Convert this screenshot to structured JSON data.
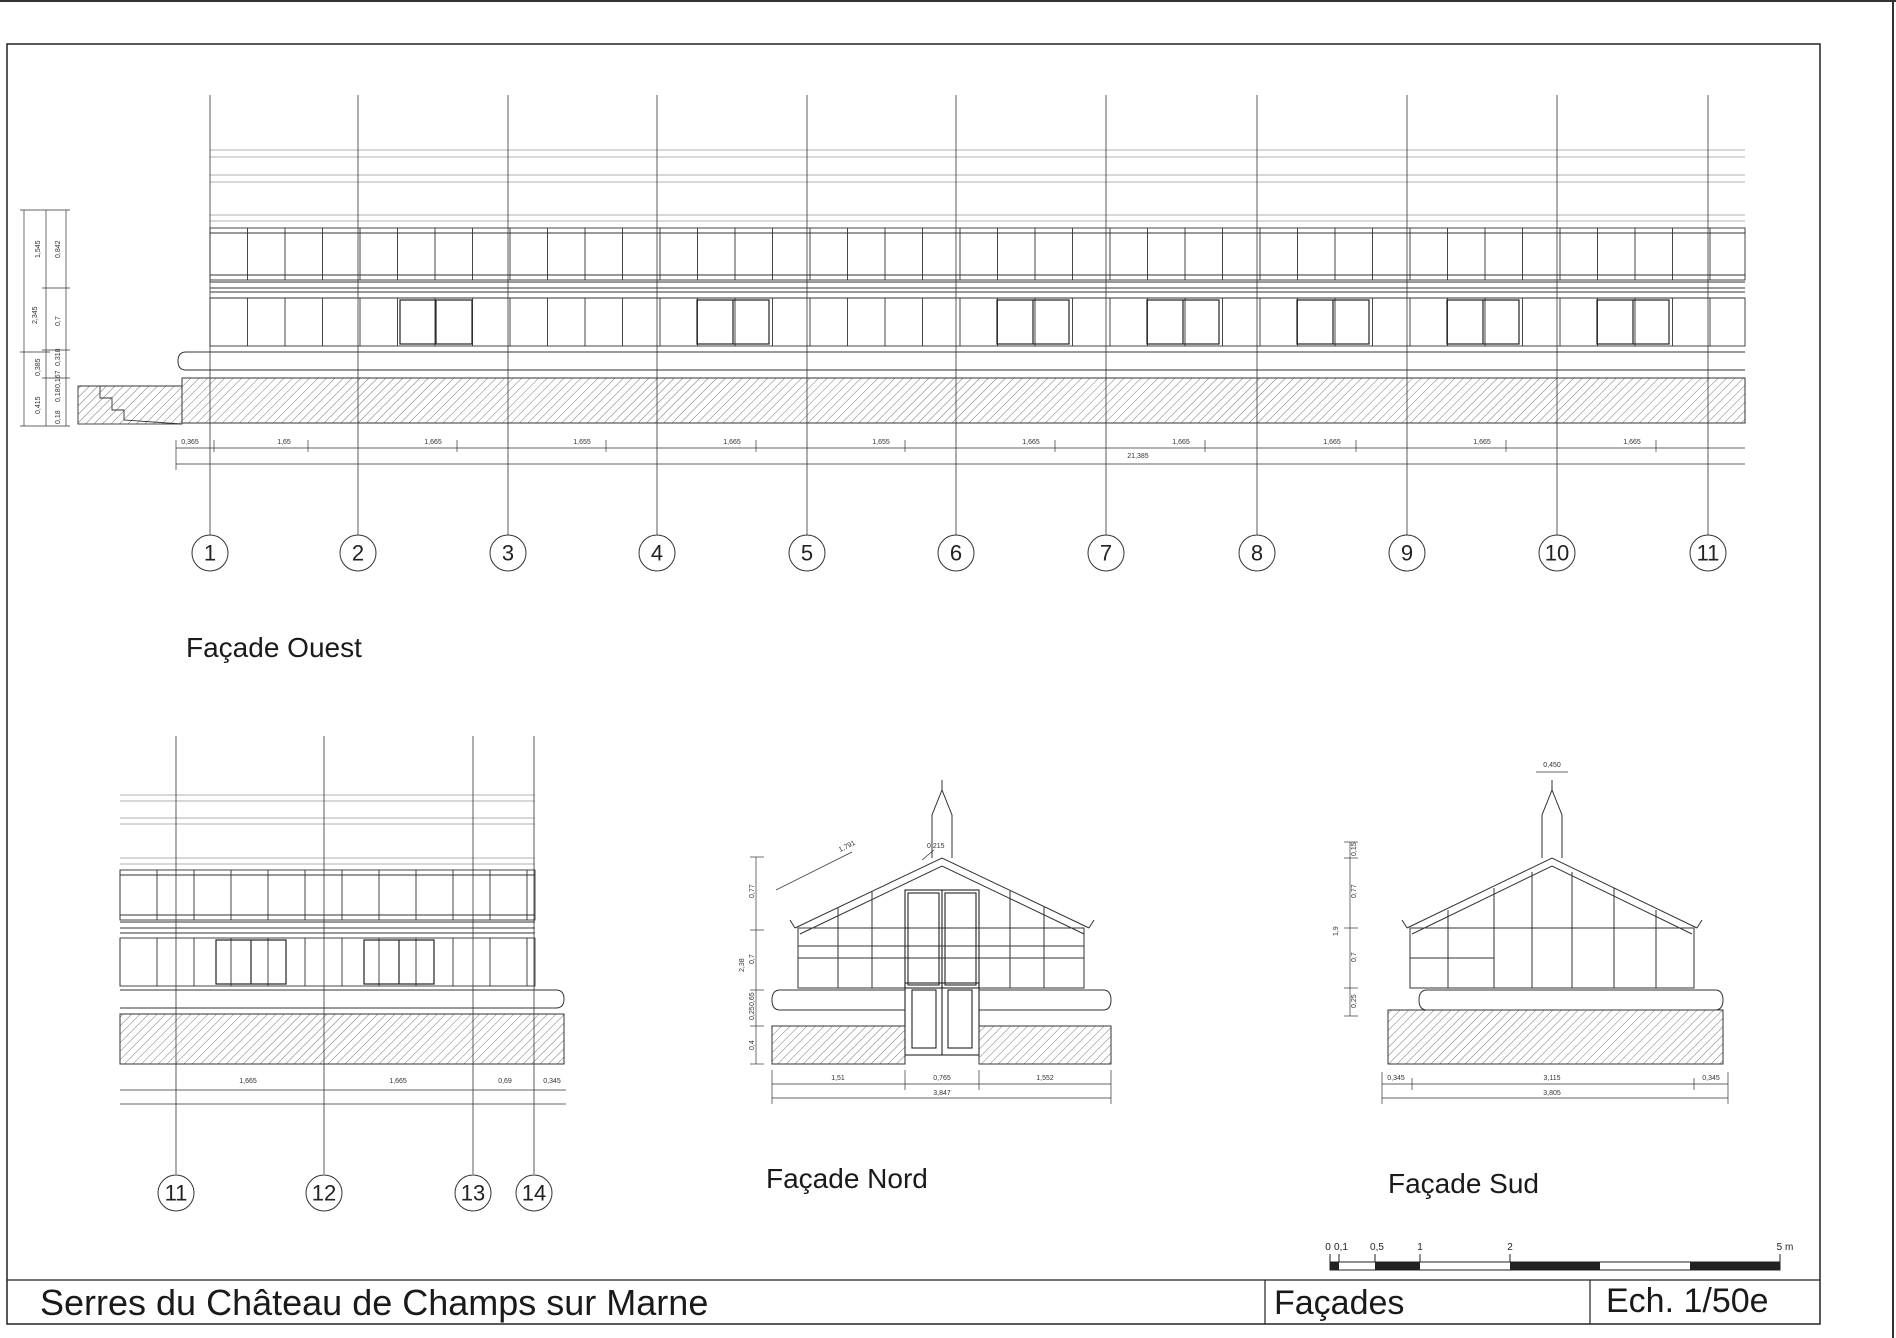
{
  "title_block": {
    "project": "Serres du Château de Champs sur Marne",
    "sheet": "Façades",
    "scale": "Ech. 1/50e"
  },
  "views": {
    "ouest": {
      "title": "Façade Ouest",
      "axes": [
        "1",
        "2",
        "3",
        "4",
        "5",
        "6",
        "7",
        "8",
        "9",
        "10",
        "11"
      ],
      "bay_dims": [
        "0,365",
        "1,65",
        "1,665",
        "1,655",
        "1,665",
        "1,655",
        "1,665",
        "1,665",
        "1,665",
        "1,665",
        "1,665"
      ],
      "overall_dim": "21,385",
      "vertical_dims": [
        "2,345",
        "1,545",
        "0,842",
        "0,7",
        "0,385",
        "0,318",
        "0,415",
        "0,18",
        "0,18",
        "0,167"
      ]
    },
    "ouest_suite": {
      "axes": [
        "11",
        "12",
        "13",
        "14"
      ],
      "bay_dims": [
        "1,665",
        "1,665",
        "0,69",
        "0,345"
      ]
    },
    "nord": {
      "title": "Façade Nord",
      "dims": [
        "1,791",
        "0,215",
        "1,51",
        "0,765",
        "1,552",
        "3,847"
      ],
      "vertical_dims": [
        "0,77",
        "2,38",
        "0,7",
        "0,65",
        "0,25",
        "0,4"
      ]
    },
    "sud": {
      "title": "Façade Sud",
      "dims": [
        "0,450",
        "0,345",
        "3,115",
        "0,345",
        "3,805"
      ],
      "vertical_dims": [
        "1,9",
        "0,15",
        "0,77",
        "0,7",
        "0,25"
      ]
    }
  },
  "scale_bar": {
    "labels": [
      "0",
      "0,1",
      "0,5",
      "1",
      "2",
      "5 m"
    ]
  }
}
